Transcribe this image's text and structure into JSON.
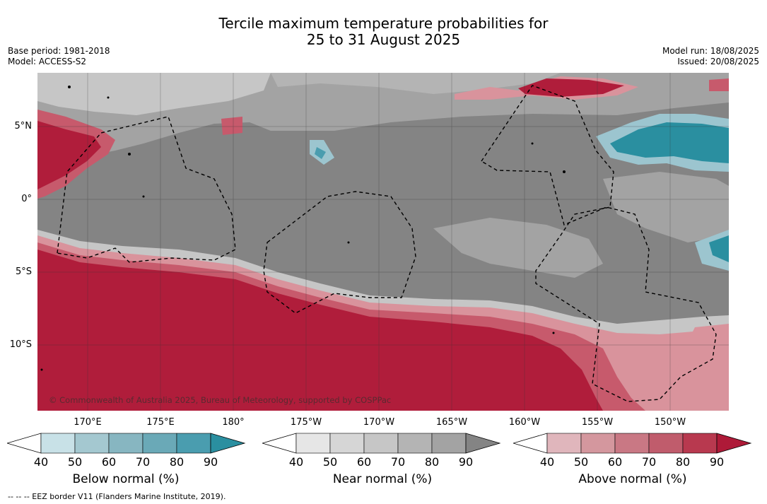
{
  "title_line1": "Tercile maximum temperature probabilities for",
  "title_line2": "25 to 31 August 2025",
  "meta": {
    "base_period": "Base period: 1981-2018",
    "model": "Model: ACCESS-S2",
    "model_run": "Model run: 18/08/2025",
    "issued": "Issued: 20/08/2025"
  },
  "map": {
    "lat_labels": [
      "5°N",
      "0°",
      "5°S",
      "10°S"
    ],
    "lon_labels": [
      "170°E",
      "175°E",
      "180°",
      "175°W",
      "170°W",
      "165°W",
      "160°W",
      "155°W",
      "150°W"
    ],
    "copyright": "© Commonwealth of Australia 2025, Bureau of Meteorology, supported by COSPPac",
    "colors": {
      "near_dark": "#848484",
      "near_mid": "#a3a3a3",
      "near_light": "#c6c6c6",
      "above_strong": "#b01d3b",
      "above_mid": "#c75a6c",
      "above_light": "#d9939c",
      "below_strong": "#2a8fa0",
      "below_light": "#9cc5cf"
    }
  },
  "colorbars": [
    {
      "name": "below",
      "title": "Below normal (%)",
      "ticks": [
        "40",
        "50",
        "60",
        "70",
        "80",
        "90"
      ],
      "colors": [
        "#c8e1e7",
        "#a4c8d0",
        "#87b6c1",
        "#6aa9b7",
        "#4a9daf",
        "#2a8fa0"
      ]
    },
    {
      "name": "near",
      "title": "Near normal (%)",
      "ticks": [
        "40",
        "50",
        "60",
        "70",
        "80",
        "90"
      ],
      "colors": [
        "#e6e6e6",
        "#d6d6d6",
        "#c6c6c6",
        "#b4b4b4",
        "#a3a3a3",
        "#848484"
      ]
    },
    {
      "name": "above",
      "title": "Above normal (%)",
      "ticks": [
        "40",
        "50",
        "60",
        "70",
        "80",
        "90"
      ],
      "colors": [
        "#e0b6bc",
        "#d4979e",
        "#c97884",
        "#c05c6c",
        "#b8394f",
        "#ae1a38"
      ]
    }
  ],
  "footer": "-- -- -- EEZ border V11 (Flanders Marine Institute, 2019)."
}
